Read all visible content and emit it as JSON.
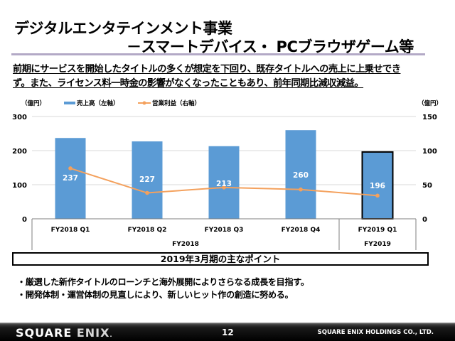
{
  "header": {
    "title_line1": "デジタルエンタテインメント事業",
    "title_line2": "－スマートデバイス・ PCブラウザゲーム等"
  },
  "summary": {
    "line1": "前期にサービスを開始したタイトルの多くが想定を下回り、既存タイトルへの売上に上乗せでき",
    "line2": "ず。また、ライセンス料一時金の影響がなくなったこともあり、前年同期比減収減益。"
  },
  "chart_data": {
    "type": "bar",
    "combo": "bar+line",
    "left_unit": "（億円）",
    "right_unit": "（億円）",
    "categories": [
      "FY2018  Q1",
      "FY2018  Q2",
      "FY2018  Q3",
      "FY2018  Q4",
      "FY2019  Q1"
    ],
    "groups": [
      {
        "label": "FY2018",
        "count": 4
      },
      {
        "label": "FY2019",
        "count": 1
      }
    ],
    "series": [
      {
        "name": "売上高（左軸）",
        "type": "bar",
        "axis": "left",
        "color": "#5b9bd5",
        "values": [
          237,
          227,
          213,
          260,
          196
        ],
        "data_labels": [
          "237",
          "227",
          "213",
          "260",
          "196"
        ],
        "highlighted_index": 4
      },
      {
        "name": "営業利益（右軸）",
        "type": "line",
        "axis": "right",
        "color": "#f4a15d",
        "values": [
          74,
          38,
          46,
          43,
          34
        ]
      }
    ],
    "left_axis": {
      "min": 0,
      "max": 300,
      "ticks": [
        "0",
        "100",
        "200",
        "300"
      ]
    },
    "right_axis": {
      "min": 0,
      "max": 150,
      "ticks": [
        "0",
        "50",
        "100",
        "150"
      ]
    },
    "grid": true,
    "legend_position": "top"
  },
  "points": {
    "heading": "2019年3月期の主なポイント",
    "items": [
      "・厳選した新作タイトルのローンチと海外展開によりさらなる成長を目指す。",
      "・開発体制・運営体制の見直しにより、新しいヒット作の創造に努める。"
    ]
  },
  "footer": {
    "logo_part1": "SQUARE",
    "logo_part2": "ENIX",
    "page_number": "12",
    "company": "SQUARE ENIX HOLDINGS CO., LTD."
  }
}
